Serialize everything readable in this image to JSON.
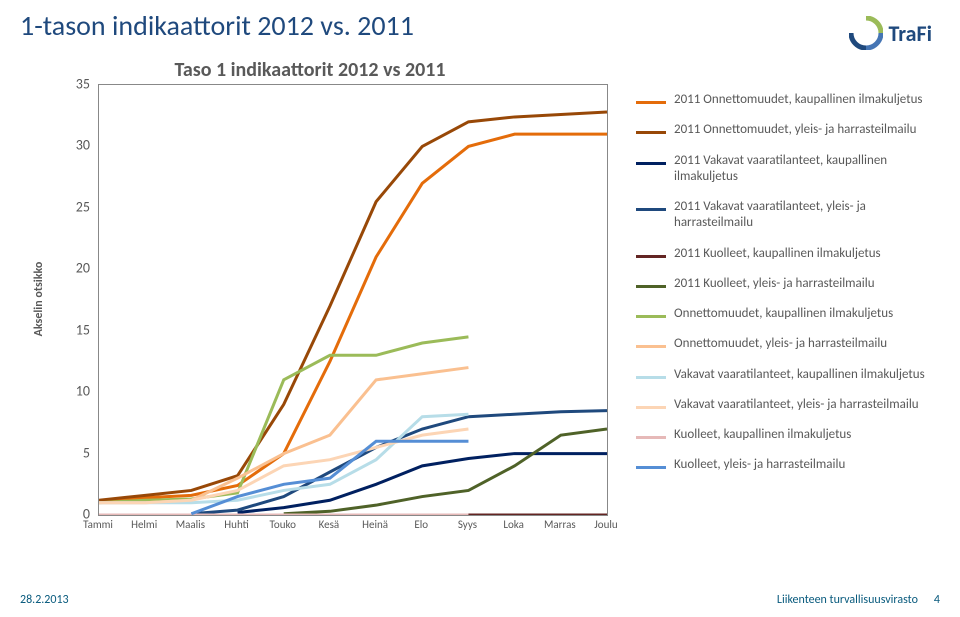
{
  "slide_title": "1-tason indikaattorit 2012 vs. 2011",
  "chart_title": "Taso 1 indikaattorit 2012 vs 2011",
  "y_axis_caption": "Akselin otsikko",
  "footer_date": "28.2.2013",
  "footer_org": "Liikenteen turvallisuusvirasto",
  "footer_page": "4",
  "logo_text": "TraFi",
  "chart": {
    "type": "line",
    "categories": [
      "Tammi",
      "Helmi",
      "Maalis",
      "Huhti",
      "Touko",
      "Kesä",
      "Heinä",
      "Elo",
      "Syys",
      "Loka",
      "Marras",
      "Joulu"
    ],
    "y_ticks": [
      0,
      5,
      10,
      15,
      20,
      25,
      30,
      35
    ],
    "ylim": [
      0,
      35
    ],
    "background_color": "#ffffff",
    "axis_color": "#888888",
    "label_color": "#595959",
    "label_fontsize": 14,
    "tick_fontsize": 11,
    "series": [
      {
        "name": "2011 Onnettomuudet, kaupallinen ilmakuljetus",
        "color": "#e46c0a",
        "width": 3,
        "values": [
          1.0,
          1.4,
          1.6,
          2.4,
          5.0,
          12.5,
          21.0,
          27.0,
          30.0,
          31.0,
          31.0,
          31.0
        ]
      },
      {
        "name": "2011 Onnettomuudet, yleis- ja harrasteilmailu",
        "color": "#984807",
        "width": 3,
        "values": [
          1.2,
          1.6,
          2.0,
          3.2,
          9.0,
          17.0,
          25.5,
          30.0,
          32.0,
          32.4,
          32.6,
          32.8
        ]
      },
      {
        "name": "2011 Vakavat vaaratilanteet, kaupallinen ilmakuljetus",
        "color": "#002060",
        "width": 3,
        "values": [
          null,
          null,
          null,
          0.2,
          0.6,
          1.2,
          2.5,
          4.0,
          4.6,
          5.0,
          5.0,
          5.0
        ]
      },
      {
        "name": "2011 Vakavat vaaratilanteet, yleis- ja harrasteilmailu",
        "color": "#1f497d",
        "width": 3,
        "values": [
          null,
          null,
          0.1,
          0.4,
          1.5,
          3.5,
          5.5,
          7.0,
          8.0,
          8.2,
          8.4,
          8.5
        ]
      },
      {
        "name": "2011 Kuolleet, kaupallinen ilmakuljetus",
        "color": "#632523",
        "width": 3,
        "values": [
          0,
          0,
          0,
          0,
          0,
          0,
          0,
          0,
          0,
          0,
          0,
          0
        ]
      },
      {
        "name": "2011 Kuolleet, yleis- ja harrasteilmailu",
        "color": "#4f6228",
        "width": 3,
        "values": [
          null,
          null,
          null,
          null,
          0.1,
          0.3,
          0.8,
          1.5,
          2.0,
          4.0,
          6.5,
          7.0
        ]
      },
      {
        "name": "Onnettomuudet, kaupallinen ilmakuljetus",
        "color": "#9bbb59",
        "width": 3,
        "values": [
          1.0,
          1.2,
          1.3,
          1.8,
          11.0,
          13.0,
          13.0,
          14.0,
          14.5,
          null,
          null,
          null
        ]
      },
      {
        "name": "Onnettomuudet, yleis- ja harrasteilmailu",
        "color": "#fac090",
        "width": 3,
        "values": [
          1.0,
          1.0,
          1.2,
          3.0,
          5.0,
          6.5,
          11.0,
          11.5,
          12.0,
          null,
          null,
          null
        ]
      },
      {
        "name": "Vakavat vaaratilanteet, kaupallinen ilmakuljetus",
        "color": "#b7dde8",
        "width": 3,
        "values": [
          1.0,
          1.0,
          1.0,
          1.2,
          2.0,
          2.5,
          4.5,
          8.0,
          8.2,
          null,
          null,
          null
        ]
      },
      {
        "name": "Vakavat vaaratilanteet, yleis- ja harrasteilmailu",
        "color": "#fcd5b5",
        "width": 3,
        "values": [
          1.0,
          1.0,
          1.2,
          2.0,
          4.0,
          4.5,
          5.5,
          6.5,
          7.0,
          null,
          null,
          null
        ]
      },
      {
        "name": "Kuolleet, kaupallinen ilmakuljetus",
        "color": "#e6b9b8",
        "width": 3,
        "values": [
          0,
          0,
          0,
          0,
          0,
          0,
          0,
          0,
          0,
          null,
          null,
          null
        ]
      },
      {
        "name": "Kuolleet, yleis- ja harrasteilmailu",
        "color": "#558ed5",
        "width": 3,
        "values": [
          null,
          null,
          0.1,
          1.5,
          2.5,
          3.0,
          6.0,
          6.0,
          6.0,
          null,
          null,
          null
        ]
      }
    ]
  }
}
